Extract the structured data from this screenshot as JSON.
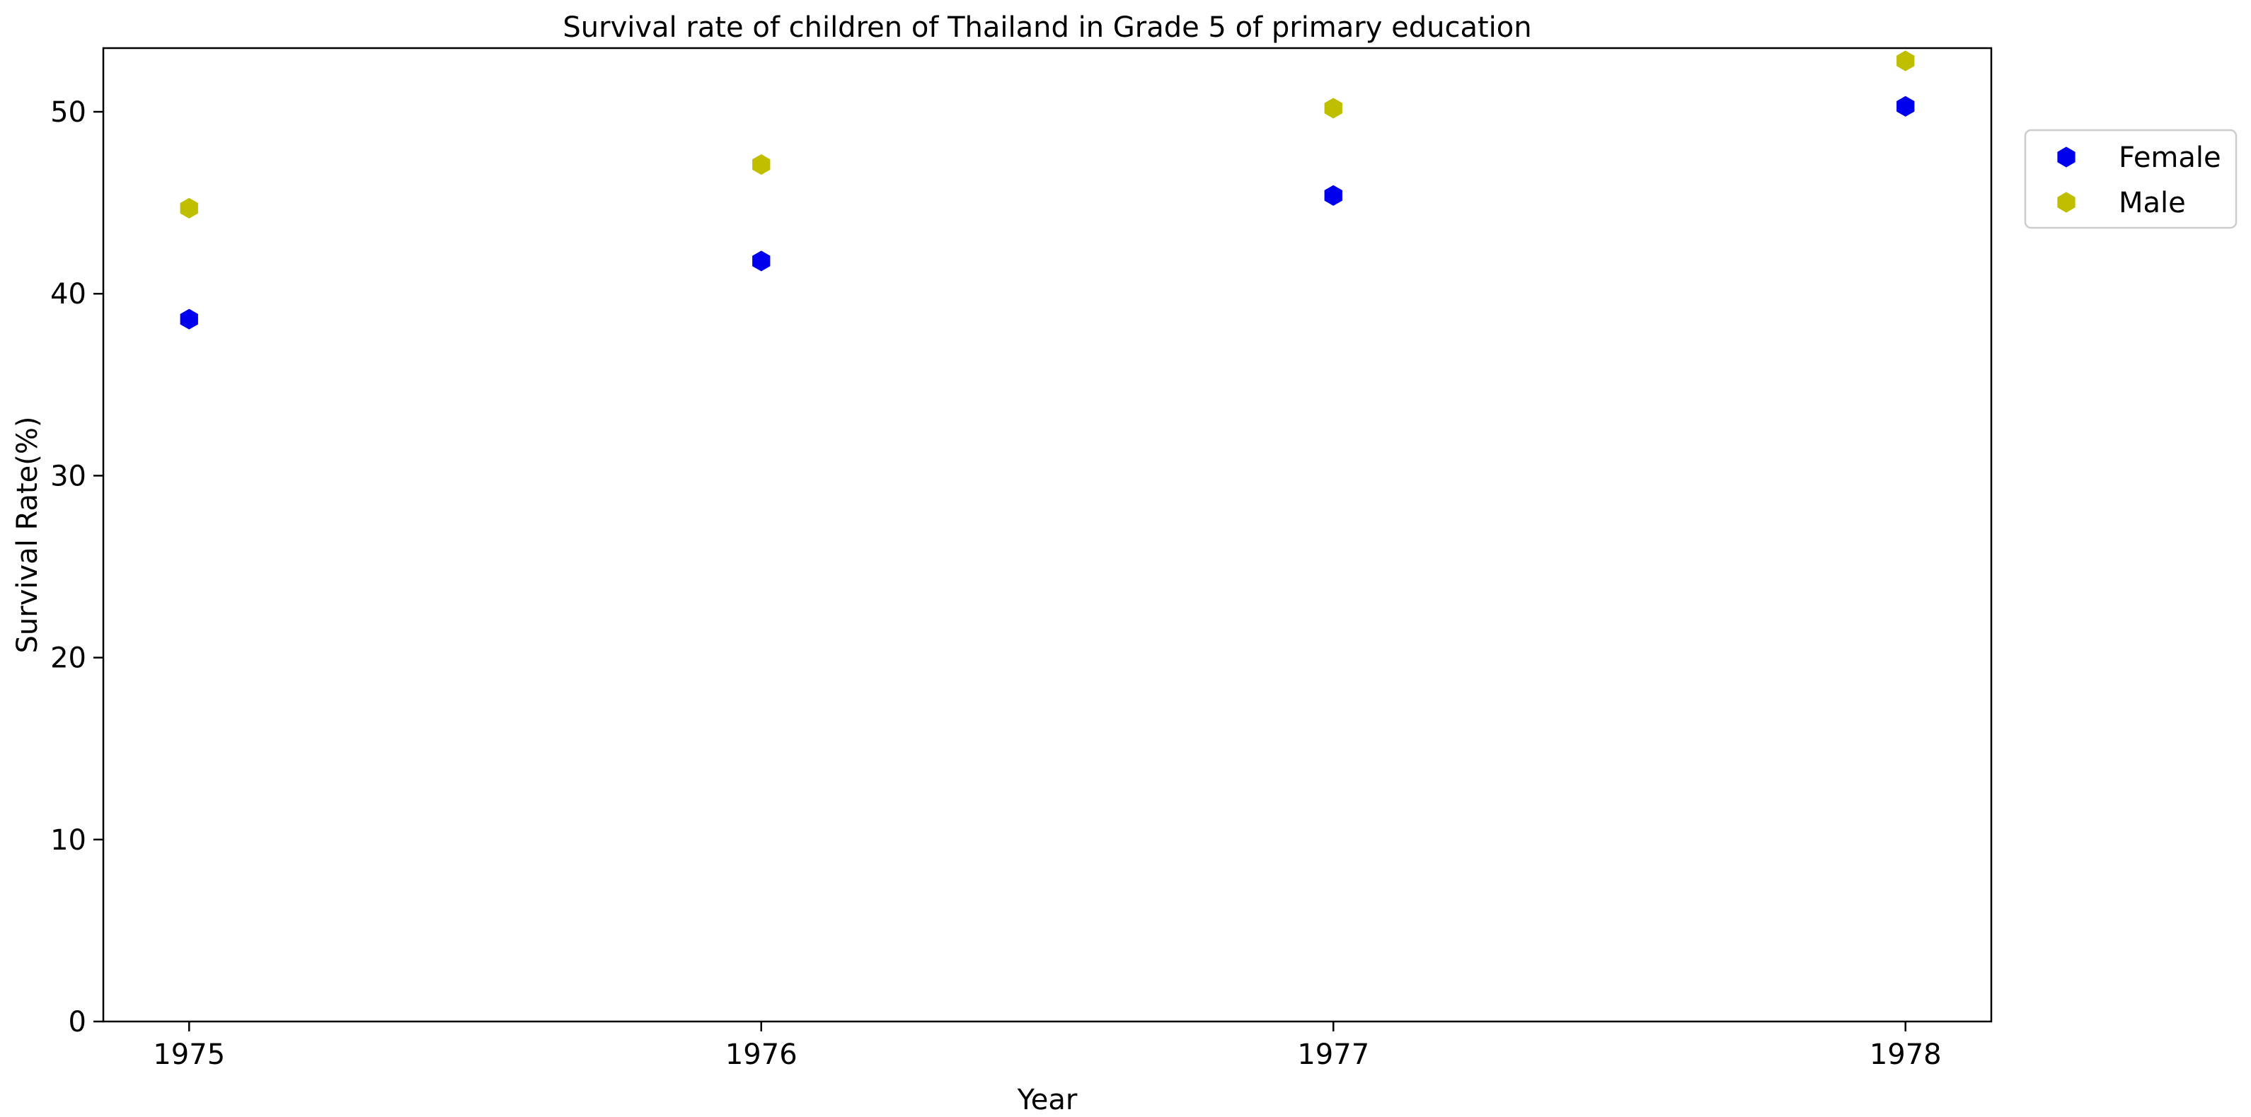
{
  "chart_data": {
    "type": "scatter",
    "title": "Survival rate of children of Thailand in Grade 5 of primary education",
    "xlabel": "Year",
    "ylabel": "Survival Rate(%)",
    "x": [
      1975,
      1976,
      1977,
      1978
    ],
    "x_tick_labels": [
      "1975",
      "1976",
      "1977",
      "1978"
    ],
    "y_ticks": [
      0,
      10,
      20,
      30,
      40,
      50
    ],
    "y_tick_labels": [
      "0",
      "10",
      "20",
      "30",
      "40",
      "50"
    ],
    "xlim": [
      1974.85,
      1978.15
    ],
    "ylim": [
      0,
      53.5
    ],
    "grid": false,
    "legend_position": "upper right, outside plot",
    "marker": "hexagon",
    "series": [
      {
        "name": "Female",
        "color": "#0000ee",
        "values": [
          38.6,
          41.8,
          45.4,
          50.3
        ]
      },
      {
        "name": "Male",
        "color": "#bfbf00",
        "values": [
          44.7,
          47.1,
          50.2,
          52.8
        ]
      }
    ]
  }
}
